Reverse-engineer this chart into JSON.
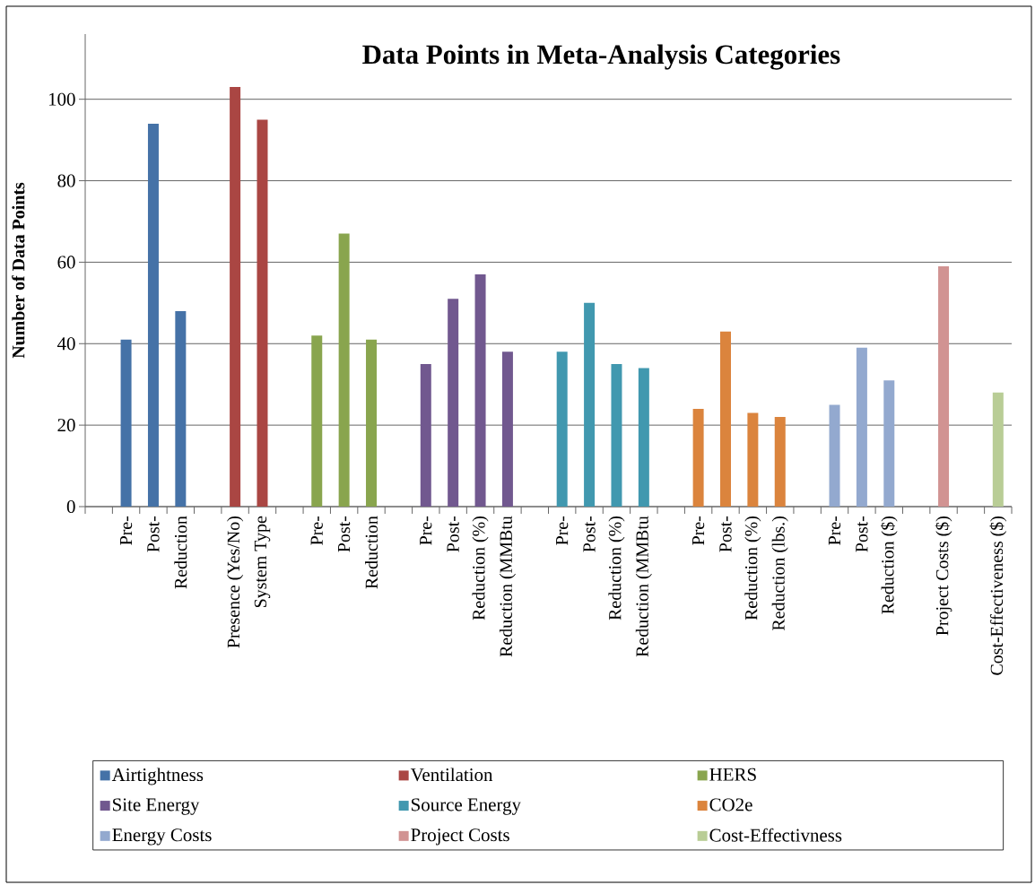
{
  "chart_data": {
    "type": "bar",
    "title": "Data Points in Meta-Analysis Categories",
    "ylabel": "Number of Data Points",
    "categories": [
      null,
      "Pre-",
      "Post-",
      "Reduction",
      null,
      "Presence (Yes/No)",
      "System Type",
      null,
      "Pre-",
      "Post-",
      "Reduction",
      null,
      "Pre-",
      "Post-",
      "Reduction (%)",
      "Reduction (MMBtu",
      null,
      "Pre-",
      "Post-",
      "Reduction (%)",
      "Reduction (MMBtu",
      null,
      "Pre-",
      "Post-",
      "Reduction (%)",
      "Reduction (lbs.)",
      null,
      "Pre-",
      "Post-",
      "Reduction ($)",
      null,
      "Project Costs ($)",
      null,
      "Cost-Effectiveness ($)"
    ],
    "series": [
      {
        "name": "Airtightness",
        "color": "#4572a7",
        "values": [
          null,
          41,
          94,
          48,
          null,
          null,
          null,
          null,
          null,
          null,
          null,
          null,
          null,
          null,
          null,
          null,
          null,
          null,
          null,
          null,
          null,
          null,
          null,
          null,
          null,
          null,
          null,
          null,
          null,
          null,
          null,
          null,
          null,
          null
        ]
      },
      {
        "name": "Ventilation",
        "color": "#aa4643",
        "values": [
          null,
          null,
          null,
          null,
          null,
          103,
          95,
          null,
          null,
          null,
          null,
          null,
          null,
          null,
          null,
          null,
          null,
          null,
          null,
          null,
          null,
          null,
          null,
          null,
          null,
          null,
          null,
          null,
          null,
          null,
          null,
          null,
          null,
          null
        ]
      },
      {
        "name": "HERS",
        "color": "#89a54e",
        "values": [
          null,
          null,
          null,
          null,
          null,
          null,
          null,
          null,
          42,
          67,
          41,
          null,
          null,
          null,
          null,
          null,
          null,
          null,
          null,
          null,
          null,
          null,
          null,
          null,
          null,
          null,
          null,
          null,
          null,
          null,
          null,
          null,
          null,
          null
        ]
      },
      {
        "name": "Site Energy",
        "color": "#71588f",
        "values": [
          null,
          null,
          null,
          null,
          null,
          null,
          null,
          null,
          null,
          null,
          null,
          null,
          35,
          51,
          57,
          38,
          null,
          null,
          null,
          null,
          null,
          null,
          null,
          null,
          null,
          null,
          null,
          null,
          null,
          null,
          null,
          null,
          null,
          null
        ]
      },
      {
        "name": "Source Energy",
        "color": "#4198af",
        "values": [
          null,
          null,
          null,
          null,
          null,
          null,
          null,
          null,
          null,
          null,
          null,
          null,
          null,
          null,
          null,
          null,
          null,
          38,
          50,
          35,
          34,
          null,
          null,
          null,
          null,
          null,
          null,
          null,
          null,
          null,
          null,
          null,
          null,
          null
        ]
      },
      {
        "name": "CO2e",
        "color": "#db843d",
        "values": [
          null,
          null,
          null,
          null,
          null,
          null,
          null,
          null,
          null,
          null,
          null,
          null,
          null,
          null,
          null,
          null,
          null,
          null,
          null,
          null,
          null,
          null,
          24,
          43,
          23,
          22,
          null,
          null,
          null,
          null,
          null,
          null,
          null,
          null
        ]
      },
      {
        "name": "Energy Costs",
        "color": "#93a9cf",
        "values": [
          null,
          null,
          null,
          null,
          null,
          null,
          null,
          null,
          null,
          null,
          null,
          null,
          null,
          null,
          null,
          null,
          null,
          null,
          null,
          null,
          null,
          null,
          null,
          null,
          null,
          null,
          null,
          25,
          39,
          31,
          null,
          null,
          null,
          null
        ]
      },
      {
        "name": "Project Costs",
        "color": "#d19392",
        "values": [
          null,
          null,
          null,
          null,
          null,
          null,
          null,
          null,
          null,
          null,
          null,
          null,
          null,
          null,
          null,
          null,
          null,
          null,
          null,
          null,
          null,
          null,
          null,
          null,
          null,
          null,
          null,
          null,
          null,
          null,
          null,
          59,
          null,
          null
        ]
      },
      {
        "name": "Cost-Effectivness",
        "color": "#b9cd96",
        "values": [
          null,
          null,
          null,
          null,
          null,
          null,
          null,
          null,
          null,
          null,
          null,
          null,
          null,
          null,
          null,
          null,
          null,
          null,
          null,
          null,
          null,
          null,
          null,
          null,
          null,
          null,
          null,
          null,
          null,
          null,
          null,
          null,
          null,
          28
        ]
      }
    ],
    "ylim": [
      0,
      116
    ],
    "yticks": [
      0,
      20,
      40,
      60,
      80,
      100
    ],
    "grid": "y",
    "legend": "bottom"
  }
}
